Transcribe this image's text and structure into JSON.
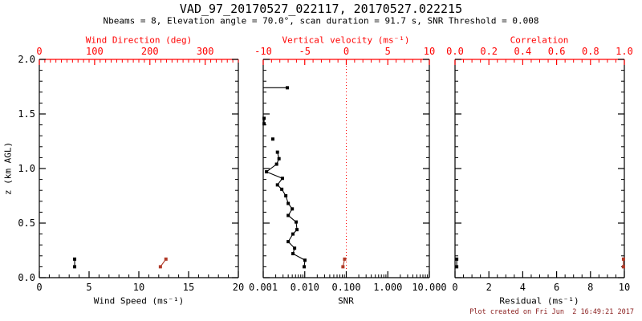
{
  "header": {
    "title": "VAD_97_20170527_022117, 20170527.022215",
    "subtitle": "Nbeams = 8, Elevation angle = 70.0°, scan duration = 91.7 s, SNR Threshold = 0.008"
  },
  "footer": {
    "created": "Plot created on Fri Jun  2 16:49:21 2017"
  },
  "colors": {
    "background": "#ffffff",
    "frame": "#000000",
    "secondary_axis": "#ff0000",
    "marker_primary": "#000000",
    "marker_secondary": "#b03a28",
    "footer_text": "#8b2020"
  },
  "chart_data": [
    {
      "id": "wind",
      "type": "scatter",
      "y_axis": {
        "label": "z (km AGL)",
        "min": 0,
        "max": 2,
        "major": [
          0,
          0.5,
          1,
          1.5,
          2
        ],
        "major_labels": [
          "0.0",
          "0.5",
          "1.0",
          "1.5",
          "2.0"
        ],
        "minor_step": 0.1,
        "show_labels": true
      },
      "x_bottom": {
        "label": "Wind Speed (ms⁻¹)",
        "min": 0,
        "max": 20,
        "major": [
          0,
          5,
          10,
          15,
          20
        ],
        "major_labels": [
          "0",
          "5",
          "10",
          "15",
          "20"
        ],
        "minor_step": 1,
        "color": "#000000"
      },
      "x_top": {
        "label": "Wind Direction (deg)",
        "min": 0,
        "max": 360,
        "major": [
          0,
          100,
          200,
          300
        ],
        "major_labels": [
          "0",
          "100",
          "200",
          "300"
        ],
        "minor_step": 10,
        "color": "#ff0000"
      },
      "series": [
        {
          "name": "wind-speed",
          "x_axis": "x_bottom",
          "color": "#000000",
          "line": true,
          "marker": true,
          "points": [
            [
              3.55,
              0.17
            ],
            [
              3.55,
              0.1
            ]
          ]
        },
        {
          "name": "wind-direction",
          "x_axis": "x_top",
          "color": "#b03a28",
          "line": true,
          "marker": true,
          "points": [
            [
              229,
              0.17
            ],
            [
              219,
              0.1
            ]
          ]
        }
      ]
    },
    {
      "id": "snr",
      "type": "scatter",
      "y_axis": {
        "label": "",
        "min": 0,
        "max": 2,
        "major": [
          0,
          0.5,
          1,
          1.5,
          2
        ],
        "major_labels": [],
        "minor_step": 0.1,
        "show_labels": false
      },
      "x_bottom": {
        "label": "SNR",
        "scale": "log",
        "min": 0.001,
        "max": 10,
        "major": [
          0.001,
          0.01,
          0.1,
          1,
          10
        ],
        "major_labels": [
          "0.001",
          "0.010",
          "0.100",
          "1.000",
          "10.000"
        ],
        "color": "#000000"
      },
      "x_top": {
        "label": "Vertical velocity (ms⁻¹)",
        "min": -10,
        "max": 10,
        "major": [
          -10,
          -5,
          0,
          5,
          10
        ],
        "major_labels": [
          "-10",
          "-5",
          "0",
          "5",
          "10"
        ],
        "minor_step": 1,
        "color": "#ff0000"
      },
      "refline": {
        "x_axis": "x_top",
        "value": 0,
        "color": "#ff0000",
        "style": "dotted"
      },
      "series": [
        {
          "name": "snr-errorbar-top",
          "x_axis": "x_bottom",
          "color": "#000000",
          "line": true,
          "marker": false,
          "points": [
            [
              0.001,
              1.74
            ],
            [
              0.0038,
              1.74
            ]
          ]
        },
        {
          "name": "snr-point-top",
          "x_axis": "x_bottom",
          "color": "#000000",
          "line": false,
          "marker": true,
          "points": [
            [
              0.0038,
              1.74
            ]
          ]
        },
        {
          "name": "snr-pair",
          "x_axis": "x_bottom",
          "color": "#000000",
          "line": true,
          "marker": true,
          "points": [
            [
              0.00105,
              1.46
            ],
            [
              0.00105,
              1.41
            ]
          ]
        },
        {
          "name": "snr-isolated-point",
          "x_axis": "x_bottom",
          "color": "#000000",
          "line": false,
          "marker": true,
          "points": [
            [
              0.0017,
              1.27
            ]
          ]
        },
        {
          "name": "snr-profile",
          "x_axis": "x_bottom",
          "color": "#000000",
          "line": true,
          "marker": true,
          "points": [
            [
              0.0022,
              1.15
            ],
            [
              0.0024,
              1.09
            ],
            [
              0.0021,
              1.04
            ],
            [
              0.0012,
              0.97
            ],
            [
              0.0029,
              0.91
            ],
            [
              0.0022,
              0.85
            ],
            [
              0.0028,
              0.81
            ],
            [
              0.0035,
              0.75
            ],
            [
              0.004,
              0.68
            ],
            [
              0.005,
              0.63
            ],
            [
              0.004,
              0.57
            ],
            [
              0.0062,
              0.51
            ],
            [
              0.0065,
              0.44
            ],
            [
              0.0052,
              0.4
            ],
            [
              0.004,
              0.33
            ],
            [
              0.0057,
              0.27
            ],
            [
              0.0052,
              0.22
            ],
            [
              0.0101,
              0.16
            ],
            [
              0.0097,
              0.1
            ]
          ]
        },
        {
          "name": "vertical-velocity",
          "x_axis": "x_top",
          "color": "#b03a28",
          "line": true,
          "marker": true,
          "points": [
            [
              -0.2,
              0.17
            ],
            [
              -0.4,
              0.1
            ]
          ]
        }
      ]
    },
    {
      "id": "residual",
      "type": "scatter",
      "y_axis": {
        "label": "",
        "min": 0,
        "max": 2,
        "major": [
          0,
          0.5,
          1,
          1.5,
          2
        ],
        "major_labels": [],
        "minor_step": 0.1,
        "show_labels": false
      },
      "x_bottom": {
        "label": "Residual (ms⁻¹)",
        "min": 0,
        "max": 10,
        "major": [
          0,
          2,
          4,
          6,
          8,
          10
        ],
        "major_labels": [
          "0",
          "2",
          "4",
          "6",
          "8",
          "10"
        ],
        "minor_step": 0.5,
        "color": "#000000"
      },
      "x_top": {
        "label": "Correlation",
        "min": 0,
        "max": 1,
        "major": [
          0,
          0.2,
          0.4,
          0.6,
          0.8,
          1
        ],
        "major_labels": [
          "0.0",
          "0.2",
          "0.4",
          "0.6",
          "0.8",
          "1.0"
        ],
        "minor_step": 0.05,
        "color": "#ff0000"
      },
      "series": [
        {
          "name": "residual",
          "x_axis": "x_bottom",
          "color": "#000000",
          "line": true,
          "marker": true,
          "points": [
            [
              0.1,
              0.17
            ],
            [
              0.1,
              0.1
            ]
          ]
        },
        {
          "name": "correlation",
          "x_axis": "x_top",
          "color": "#b03a28",
          "line": true,
          "marker": true,
          "points": [
            [
              0.995,
              0.17
            ],
            [
              0.995,
              0.1
            ]
          ]
        }
      ]
    }
  ]
}
